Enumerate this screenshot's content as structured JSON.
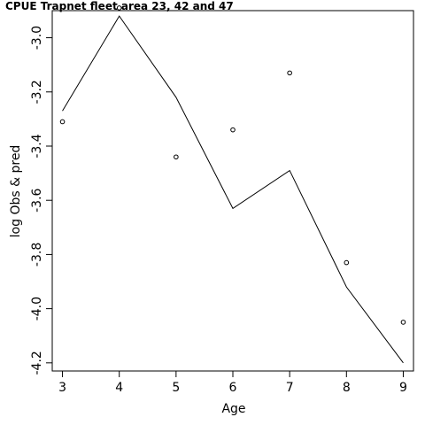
{
  "chart_data": {
    "type": "line",
    "title": "CPUE Trapnet fleet area 23, 42 and 47",
    "xlabel": "Age",
    "ylabel": "log Obs & pred",
    "x": [
      3,
      4,
      5,
      6,
      7,
      8,
      9
    ],
    "xticks": [
      "3",
      "4",
      "5",
      "6",
      "7",
      "8",
      "9"
    ],
    "yticks": [
      "-4.2",
      "-4.0",
      "-3.8",
      "-3.6",
      "-3.4",
      "-3.2",
      "-3.0"
    ],
    "xlim": [
      2.82,
      9.18
    ],
    "ylim": [
      -4.23,
      -2.9
    ],
    "grid": false,
    "series": [
      {
        "kind": "line",
        "values": [
          -3.27,
          -2.92,
          -3.22,
          -3.63,
          -3.49,
          -3.92,
          -4.2
        ]
      },
      {
        "kind": "points",
        "values": [
          -3.31,
          -2.89,
          -3.44,
          -3.34,
          -3.13,
          -3.83,
          -4.05
        ]
      }
    ]
  }
}
